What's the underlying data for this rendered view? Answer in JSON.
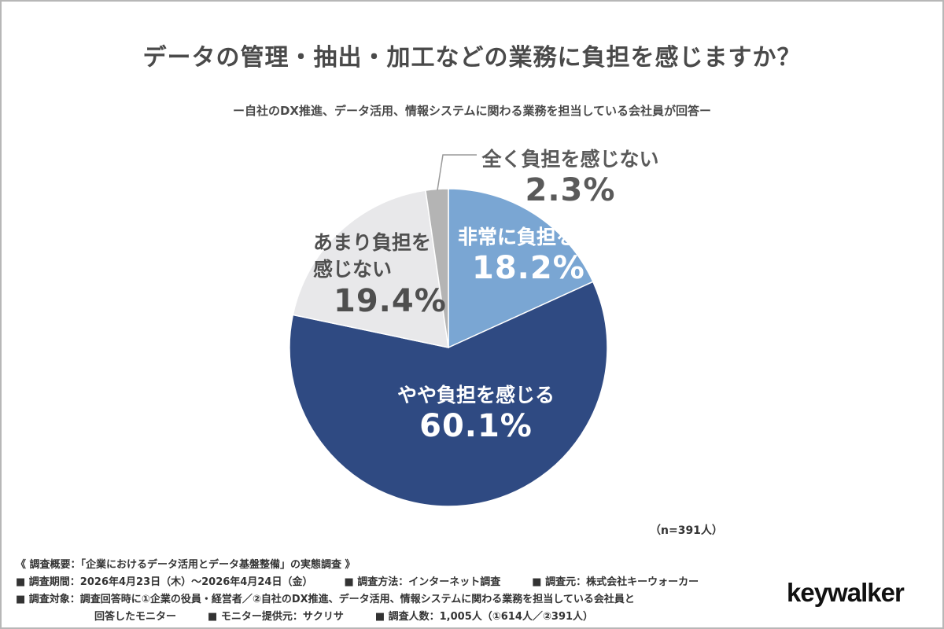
{
  "chart_data": {
    "type": "pie",
    "title": "データの管理・抽出・加工などの業務に負担を感じますか？",
    "subtitle": "ー自社のDX推進、データ活用、情報システムに関わる業務を担当している会社員が回答ー",
    "slices": [
      {
        "label": "非常に負担を感じる",
        "value": 18.2,
        "display": "18.2%",
        "color": "#7aa6d3"
      },
      {
        "label": "やや負担を感じる",
        "value": 60.1,
        "display": "60.1%",
        "color": "#2f4a82"
      },
      {
        "label": "あまり負担を感じない",
        "label_lines": [
          "あまり負担を",
          "感じない"
        ],
        "value": 19.4,
        "display": "19.4%",
        "color": "#e8e8ea"
      },
      {
        "label": "全く負担を感じない",
        "value": 2.3,
        "display": "2.3%",
        "color": "#b4b4b4"
      }
    ],
    "sample_note": "（n=391人）"
  },
  "footer": {
    "overview": "《 調査概要：「企業におけるデータ活用とデータ基盤整備」の実態調査 》",
    "period": "■ 調査期間：2026年4月23日（木）〜2026年4月24日（金）",
    "method": "■ 調査方法：インターネット調査",
    "source": "■ 調査元：株式会社キーウォーカー",
    "target": "■ 調査対象：調査回答時に①企業の役員・経営者／②自社のDX推進、データ活用、情報システムに関わる業務を担当している会社員と",
    "target_cont": "回答したモニター",
    "provider": "■ モニター提供元：サクリサ",
    "count": "■ 調査人数：1,005人（①614人／②391人）"
  },
  "brand": "keywalker"
}
